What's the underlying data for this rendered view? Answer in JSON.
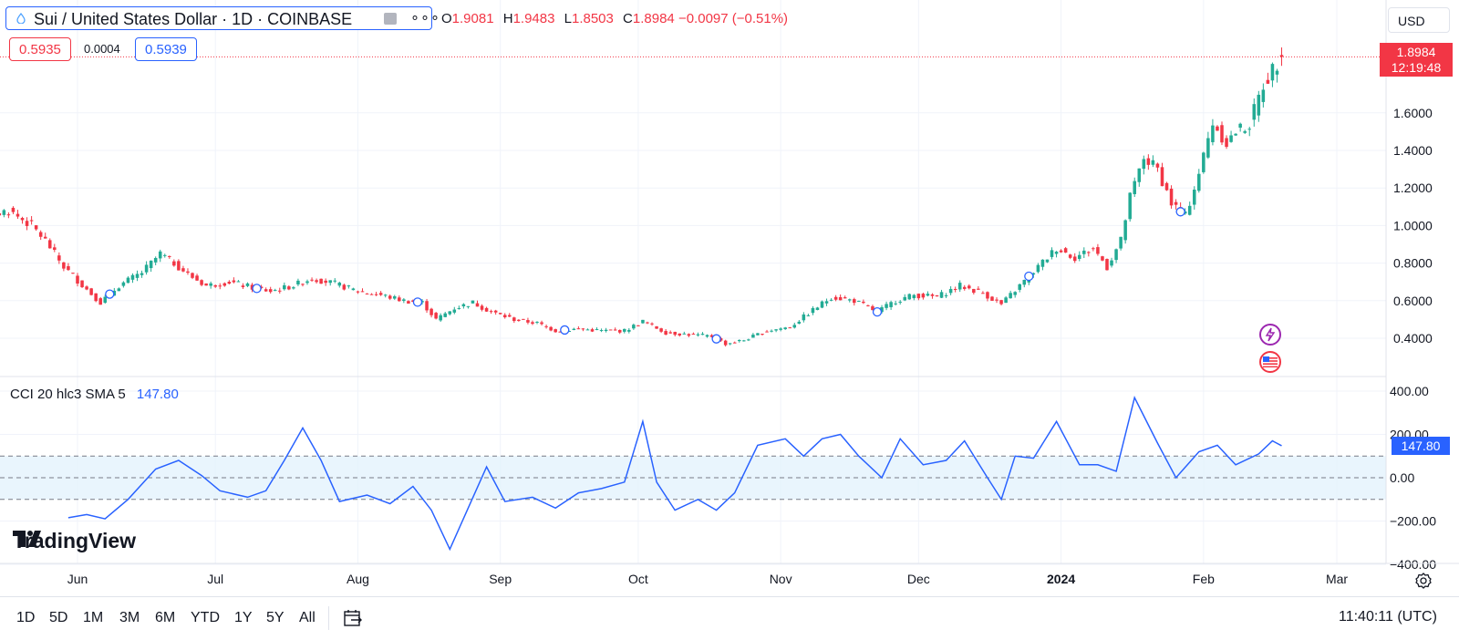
{
  "header": {
    "symbol_title": "Sui / United States Dollar · 1D · COINBASE",
    "more_label": "∘∘∘",
    "ohlc": {
      "o_label": "O",
      "o": "1.9081",
      "h_label": "H",
      "h": "1.9483",
      "l_label": "L",
      "l": "1.8503",
      "c_label": "C",
      "c": "1.8984",
      "change": "−0.0097 (−0.51%)"
    },
    "currency": "USD"
  },
  "trade": {
    "bid": "0.5935",
    "spread": "0.0004",
    "ask": "0.5939"
  },
  "price_badge": {
    "price": "1.8984",
    "countdown": "12:19:48"
  },
  "indicator": {
    "label": "CCI 20 hlc3 SMA 5",
    "value": "147.80",
    "badge": "147.80"
  },
  "branding": {
    "logo_text": "TradingView"
  },
  "colors": {
    "up": "#22ab94",
    "down": "#f23645",
    "accent": "#2962ff",
    "band": "#e3f2fd"
  },
  "bottom_bar": {
    "ranges": [
      "1D",
      "5D",
      "1M",
      "3M",
      "6M",
      "YTD",
      "1Y",
      "5Y",
      "All"
    ],
    "clock": "11:40:11 (UTC)"
  },
  "chart_data": [
    {
      "type": "candlestick",
      "title": "Sui / United States Dollar · 1D · COINBASE",
      "y_axis_ticks": [
        "1.6000",
        "1.4000",
        "1.2000",
        "1.0000",
        "0.8000",
        "0.6000",
        "0.4000"
      ],
      "x_axis_ticks": [
        {
          "label": "Jun",
          "date": "2023-06-01"
        },
        {
          "label": "Jul",
          "date": "2023-07-01"
        },
        {
          "label": "Aug",
          "date": "2023-08-01"
        },
        {
          "label": "Sep",
          "date": "2023-09-01"
        },
        {
          "label": "Oct",
          "date": "2023-10-01"
        },
        {
          "label": "Nov",
          "date": "2023-11-01"
        },
        {
          "label": "Dec",
          "date": "2023-12-01"
        },
        {
          "label": "2024",
          "date": "2024-01-01"
        },
        {
          "label": "Feb",
          "date": "2024-02-01"
        },
        {
          "label": "Mar",
          "date": "2024-03-01"
        }
      ],
      "close_path": [
        [
          "2023-05-03",
          1.16
        ],
        [
          "2023-05-07",
          1.13
        ],
        [
          "2023-05-12",
          1.05
        ],
        [
          "2023-05-17",
          1.08
        ],
        [
          "2023-05-22",
          1.0
        ],
        [
          "2023-05-25",
          0.92
        ],
        [
          "2023-05-29",
          0.78
        ],
        [
          "2023-06-03",
          0.66
        ],
        [
          "2023-06-06",
          0.59
        ],
        [
          "2023-06-10",
          0.68
        ],
        [
          "2023-06-15",
          0.75
        ],
        [
          "2023-06-19",
          0.85
        ],
        [
          "2023-06-22",
          0.8
        ],
        [
          "2023-06-25",
          0.74
        ],
        [
          "2023-06-29",
          0.68
        ],
        [
          "2023-07-04",
          0.7
        ],
        [
          "2023-07-09",
          0.67
        ],
        [
          "2023-07-13",
          0.65
        ],
        [
          "2023-07-18",
          0.68
        ],
        [
          "2023-07-22",
          0.72
        ],
        [
          "2023-07-27",
          0.69
        ],
        [
          "2023-08-01",
          0.65
        ],
        [
          "2023-08-06",
          0.63
        ],
        [
          "2023-08-11",
          0.6
        ],
        [
          "2023-08-15",
          0.59
        ],
        [
          "2023-08-18",
          0.5
        ],
        [
          "2023-08-22",
          0.56
        ],
        [
          "2023-08-26",
          0.59
        ],
        [
          "2023-08-30",
          0.54
        ],
        [
          "2023-09-04",
          0.5
        ],
        [
          "2023-09-09",
          0.48
        ],
        [
          "2023-09-13",
          0.44
        ],
        [
          "2023-09-18",
          0.45
        ],
        [
          "2023-09-23",
          0.44
        ],
        [
          "2023-09-28",
          0.44
        ],
        [
          "2023-10-02",
          0.49
        ],
        [
          "2023-10-07",
          0.43
        ],
        [
          "2023-10-12",
          0.42
        ],
        [
          "2023-10-17",
          0.41
        ],
        [
          "2023-10-20",
          0.37
        ],
        [
          "2023-10-24",
          0.39
        ],
        [
          "2023-10-29",
          0.44
        ],
        [
          "2023-11-03",
          0.46
        ],
        [
          "2023-11-08",
          0.55
        ],
        [
          "2023-11-12",
          0.62
        ],
        [
          "2023-11-17",
          0.6
        ],
        [
          "2023-11-22",
          0.54
        ],
        [
          "2023-11-26",
          0.6
        ],
        [
          "2023-11-30",
          0.63
        ],
        [
          "2023-12-05",
          0.62
        ],
        [
          "2023-12-10",
          0.68
        ],
        [
          "2023-12-15",
          0.64
        ],
        [
          "2023-12-19",
          0.58
        ],
        [
          "2023-12-23",
          0.68
        ],
        [
          "2023-12-27",
          0.78
        ],
        [
          "2023-12-31",
          0.88
        ],
        [
          "2024-01-04",
          0.83
        ],
        [
          "2024-01-08",
          0.88
        ],
        [
          "2024-01-11",
          0.78
        ],
        [
          "2024-01-14",
          0.92
        ],
        [
          "2024-01-16",
          1.15
        ],
        [
          "2024-01-19",
          1.36
        ],
        [
          "2024-01-22",
          1.3
        ],
        [
          "2024-01-25",
          1.12
        ],
        [
          "2024-01-28",
          1.05
        ],
        [
          "2024-01-31",
          1.28
        ],
        [
          "2024-02-03",
          1.55
        ],
        [
          "2024-02-06",
          1.44
        ],
        [
          "2024-02-08",
          1.5
        ],
        [
          "2024-02-11",
          1.54
        ],
        [
          "2024-02-14",
          1.75
        ],
        [
          "2024-02-16",
          1.83
        ],
        [
          "2024-02-18",
          1.9
        ]
      ],
      "last": {
        "open": 1.9081,
        "high": 1.9483,
        "low": 1.8503,
        "close": 1.8984
      }
    },
    {
      "type": "line",
      "title": "CCI 20 hlc3 SMA 5",
      "y_axis_ticks": [
        "400.00",
        "200.00",
        "0.00",
        "−200.00",
        "−400.00"
      ],
      "bands": [
        -100,
        0,
        100
      ],
      "series": [
        {
          "values": [
            [
              "2023-05-30",
              -185
            ],
            [
              "2023-06-03",
              -170
            ],
            [
              "2023-06-07",
              -190
            ],
            [
              "2023-06-12",
              -100
            ],
            [
              "2023-06-18",
              40
            ],
            [
              "2023-06-23",
              80
            ],
            [
              "2023-06-28",
              10
            ],
            [
              "2023-07-02",
              -60
            ],
            [
              "2023-07-08",
              -90
            ],
            [
              "2023-07-12",
              -60
            ],
            [
              "2023-07-16",
              80
            ],
            [
              "2023-07-20",
              230
            ],
            [
              "2023-07-24",
              80
            ],
            [
              "2023-07-28",
              -110
            ],
            [
              "2023-08-03",
              -80
            ],
            [
              "2023-08-08",
              -120
            ],
            [
              "2023-08-13",
              -40
            ],
            [
              "2023-08-17",
              -150
            ],
            [
              "2023-08-21",
              -330
            ],
            [
              "2023-08-25",
              -140
            ],
            [
              "2023-08-29",
              50
            ],
            [
              "2023-09-02",
              -110
            ],
            [
              "2023-09-08",
              -90
            ],
            [
              "2023-09-13",
              -140
            ],
            [
              "2023-09-18",
              -70
            ],
            [
              "2023-09-23",
              -50
            ],
            [
              "2023-09-28",
              -20
            ],
            [
              "2023-10-02",
              260
            ],
            [
              "2023-10-05",
              -20
            ],
            [
              "2023-10-09",
              -150
            ],
            [
              "2023-10-14",
              -100
            ],
            [
              "2023-10-18",
              -150
            ],
            [
              "2023-10-22",
              -70
            ],
            [
              "2023-10-27",
              150
            ],
            [
              "2023-11-02",
              180
            ],
            [
              "2023-11-06",
              100
            ],
            [
              "2023-11-10",
              180
            ],
            [
              "2023-11-14",
              200
            ],
            [
              "2023-11-18",
              100
            ],
            [
              "2023-11-23",
              0
            ],
            [
              "2023-11-27",
              180
            ],
            [
              "2023-12-02",
              60
            ],
            [
              "2023-12-07",
              80
            ],
            [
              "2023-12-11",
              170
            ],
            [
              "2023-12-16",
              0
            ],
            [
              "2023-12-19",
              -100
            ],
            [
              "2023-12-22",
              100
            ],
            [
              "2023-12-26",
              90
            ],
            [
              "2023-12-31",
              260
            ],
            [
              "2024-01-05",
              60
            ],
            [
              "2024-01-09",
              60
            ],
            [
              "2024-01-13",
              30
            ],
            [
              "2024-01-17",
              370
            ],
            [
              "2024-01-22",
              160
            ],
            [
              "2024-01-26",
              0
            ],
            [
              "2024-01-31",
              120
            ],
            [
              "2024-02-04",
              150
            ],
            [
              "2024-02-08",
              60
            ],
            [
              "2024-02-13",
              110
            ],
            [
              "2024-02-16",
              170
            ],
            [
              "2024-02-18",
              148
            ]
          ]
        }
      ]
    }
  ]
}
